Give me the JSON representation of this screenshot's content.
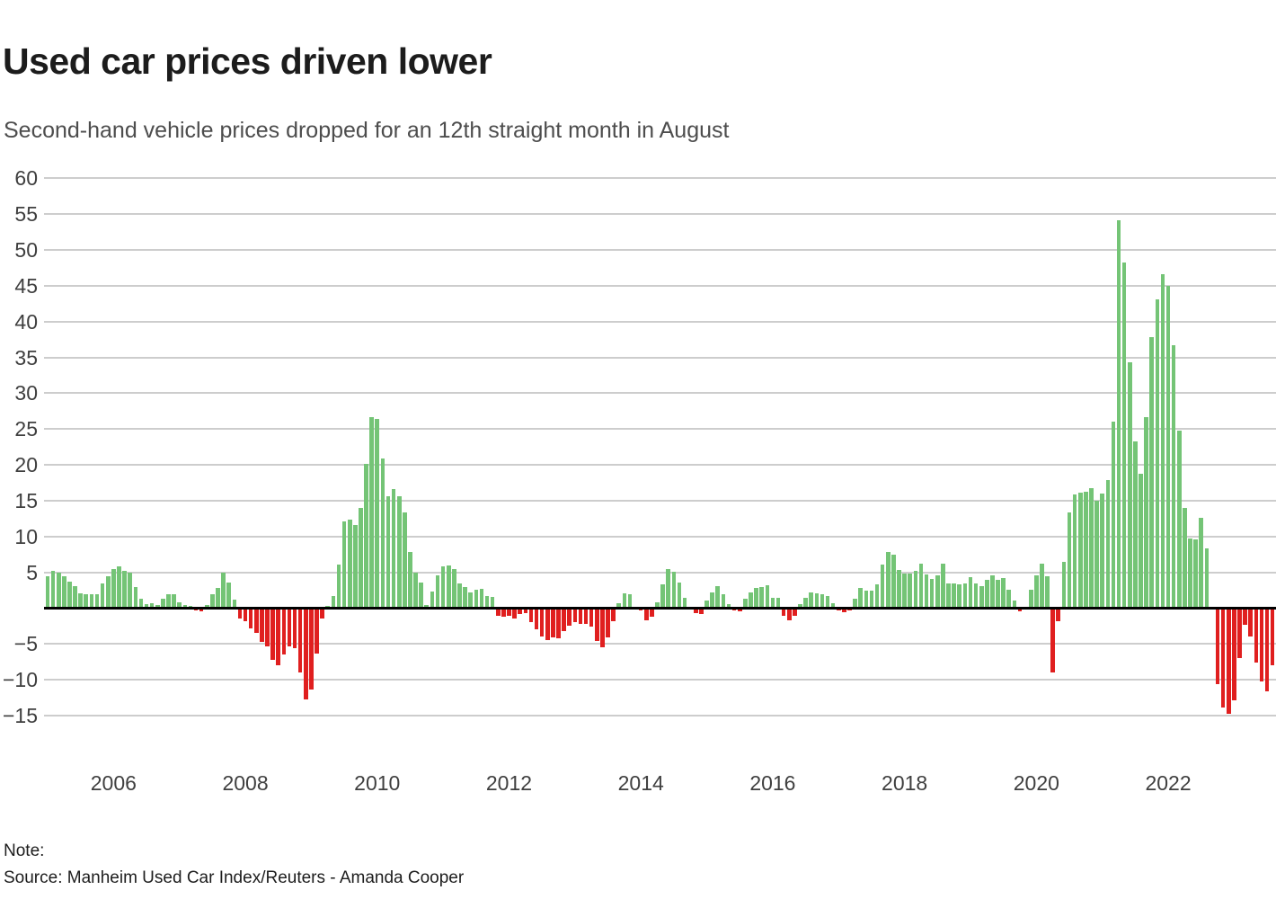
{
  "header": {
    "title": "Used car prices driven lower",
    "subtitle": "Second-hand vehicle prices dropped for an 12th straight month in August"
  },
  "chart_data": {
    "type": "bar",
    "title": "Used car prices driven lower",
    "x_start": "2005-01",
    "x_end": "2023-08",
    "frequency": "monthly",
    "values": [
      4.5,
      5.2,
      5.0,
      4.4,
      3.7,
      3.1,
      2.1,
      2.0,
      2.0,
      2.0,
      3.4,
      4.4,
      5.5,
      5.8,
      5.2,
      5.0,
      3.0,
      1.3,
      0.6,
      0.7,
      0.5,
      1.3,
      2.0,
      2.0,
      0.8,
      0.5,
      0.3,
      -0.3,
      -0.4,
      0.5,
      2.0,
      2.8,
      4.9,
      3.6,
      1.2,
      -1.4,
      -1.8,
      -2.8,
      -3.4,
      -4.7,
      -5.3,
      -7.2,
      -8.0,
      -6.5,
      -5.3,
      -5.6,
      -9.0,
      -12.7,
      -11.3,
      -6.3,
      -1.4,
      0.3,
      1.7,
      6.1,
      12.1,
      12.3,
      11.6,
      14.0,
      20.1,
      26.7,
      26.4,
      20.9,
      15.6,
      16.6,
      15.6,
      13.4,
      7.9,
      4.9,
      3.6,
      0.5,
      2.3,
      4.6,
      5.8,
      6.0,
      5.4,
      3.4,
      3.0,
      2.2,
      2.6,
      2.7,
      1.7,
      1.6,
      -1.1,
      -1.2,
      -1.1,
      -1.4,
      -0.8,
      -0.7,
      -1.9,
      -3.0,
      -3.9,
      -4.4,
      -4.1,
      -4.2,
      -3.2,
      -2.4,
      -1.9,
      -2.2,
      -2.2,
      -2.6,
      -4.6,
      -5.4,
      -4.1,
      -1.8,
      0.7,
      2.1,
      2.0,
      0.1,
      -0.3,
      -1.7,
      -1.2,
      0.8,
      3.3,
      5.5,
      5.1,
      3.6,
      1.4,
      0.0,
      -0.7,
      -0.8,
      1.1,
      2.2,
      3.1,
      2.0,
      0.6,
      -0.3,
      -0.5,
      1.3,
      2.2,
      2.8,
      3.0,
      3.2,
      1.5,
      1.5,
      -1.1,
      -1.7,
      -1.1,
      0.6,
      1.5,
      2.2,
      2.1,
      2.0,
      1.7,
      0.7,
      -0.3,
      -0.6,
      -0.3,
      1.3,
      2.8,
      2.4,
      2.5,
      3.3,
      6.1,
      7.8,
      7.5,
      5.3,
      4.8,
      4.8,
      5.2,
      6.2,
      4.7,
      4.1,
      4.6,
      6.2,
      3.5,
      3.4,
      3.3,
      3.5,
      4.3,
      3.5,
      3.1,
      3.9,
      4.6,
      4.0,
      4.2,
      2.6,
      1.1,
      -0.4,
      0.0,
      2.6,
      4.6,
      6.2,
      4.4,
      -9.0,
      -1.8,
      6.5,
      13.3,
      15.9,
      16.1,
      16.2,
      16.8,
      15.0,
      16.0,
      17.9,
      26.0,
      54.2,
      48.2,
      34.3,
      23.3,
      18.7,
      26.6,
      37.8,
      43.1,
      46.6,
      45.0,
      36.7,
      24.8,
      14.0,
      9.7,
      9.6,
      12.6,
      8.3,
      0.2,
      -10.6,
      -13.9,
      -14.8,
      -12.8,
      -7.0,
      -2.3,
      -4.0,
      -7.6,
      -10.2,
      -11.6,
      -8.0
    ],
    "ylim": [
      -17,
      62
    ],
    "yticks": [
      60,
      55,
      50,
      45,
      40,
      35,
      30,
      25,
      20,
      15,
      10,
      5,
      -5,
      -10,
      -15
    ],
    "ytick_labels": [
      "60",
      "55",
      "50",
      "45",
      "40",
      "35",
      "30",
      "25",
      "20",
      "15",
      "10",
      "5",
      "−5",
      "−10",
      "−15"
    ],
    "xticks": [
      {
        "label": "2006",
        "month": 12
      },
      {
        "label": "2008",
        "month": 36
      },
      {
        "label": "2010",
        "month": 60
      },
      {
        "label": "2012",
        "month": 84
      },
      {
        "label": "2014",
        "month": 108
      },
      {
        "label": "2016",
        "month": 132
      },
      {
        "label": "2018",
        "month": 156
      },
      {
        "label": "2020",
        "month": 180
      },
      {
        "label": "2022",
        "month": 204
      }
    ],
    "positive_color": "#74c476",
    "negative_color": "#e01f1f",
    "zero_line_color": "#000000",
    "grid": true,
    "legend": false
  },
  "footer": {
    "note_label": "Note:",
    "source": "Source: Manheim Used Car Index/Reuters - Amanda Cooper"
  }
}
